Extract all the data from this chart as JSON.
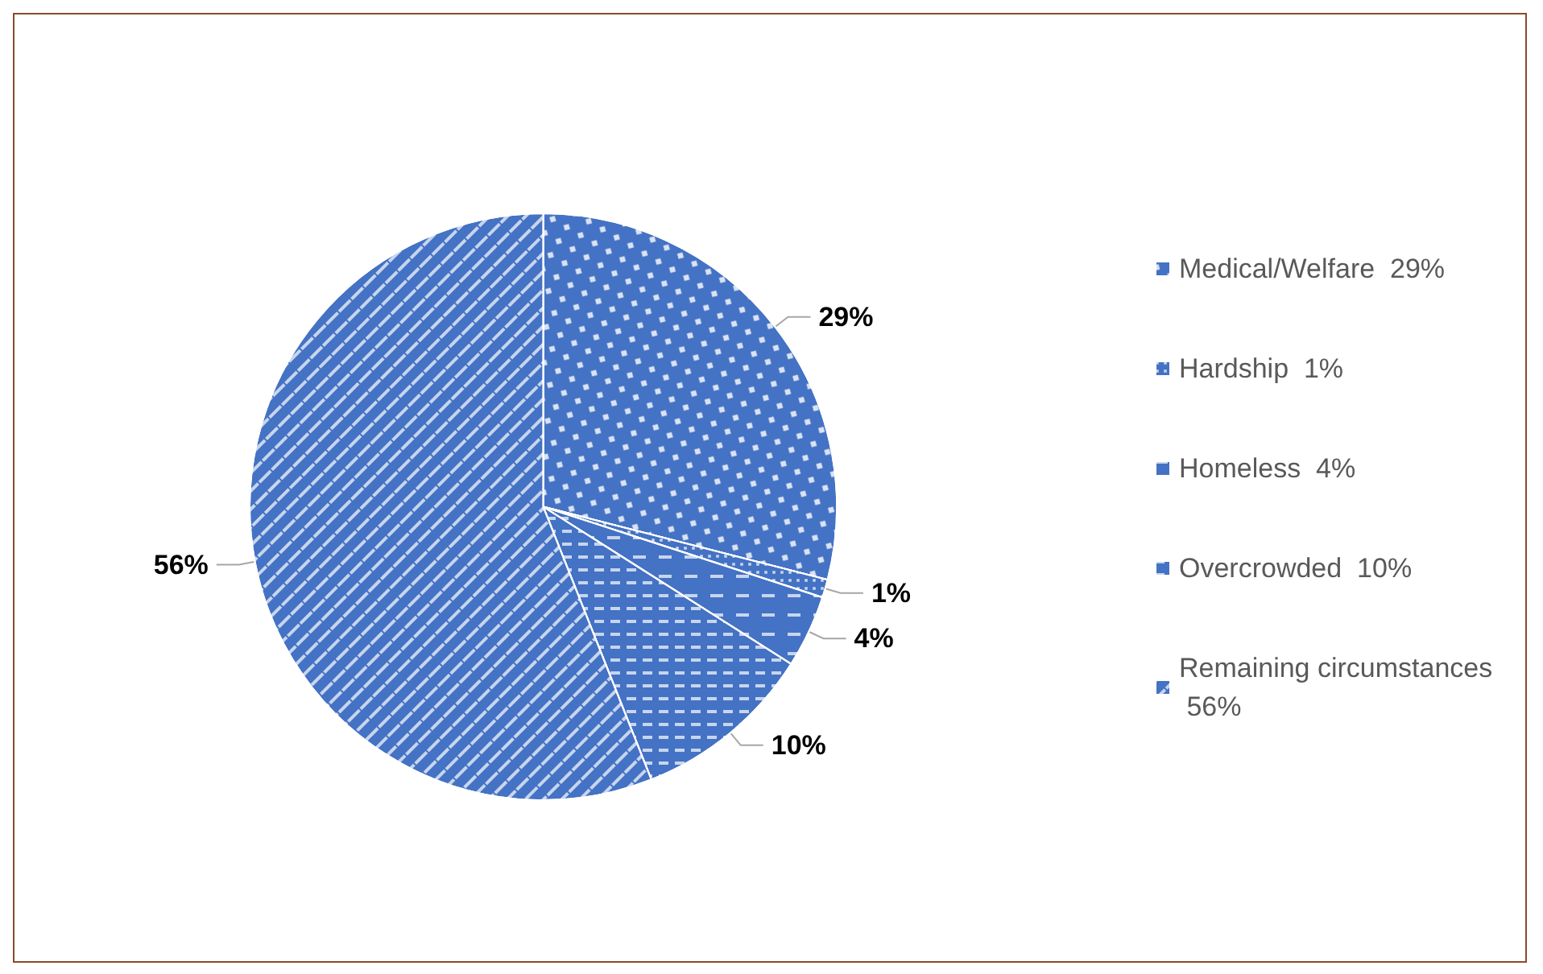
{
  "chart_data": {
    "type": "pie",
    "categories": [
      "Medical/Welfare  29%",
      "Hardship  1%",
      "Homeless  4%",
      "Overcrowded  10%",
      "Remaining circumstances  56%"
    ],
    "values": [
      29,
      1,
      4,
      10,
      56
    ],
    "value_labels": [
      "29%",
      "1%",
      "4%",
      "10%",
      "56%"
    ],
    "colors": [
      "#4472c4",
      "#4472c4",
      "#4472c4",
      "#4472c4",
      "#4472c4"
    ],
    "legend": "right"
  }
}
